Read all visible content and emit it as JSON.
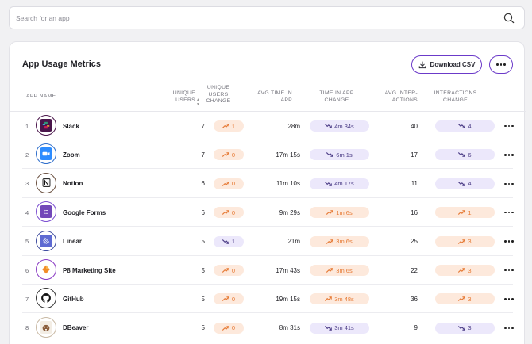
{
  "search": {
    "placeholder": "Search for an app"
  },
  "card": {
    "title": "App Usage Metrics",
    "download_label": "Download CSV"
  },
  "columns": {
    "app_name": "APP NAME",
    "unique_users": [
      "UNIQUE",
      "USERS"
    ],
    "users_change": [
      "UNIQUE",
      "USERS",
      "CHANGE"
    ],
    "avg_time": [
      "AVG TIME IN",
      "APP"
    ],
    "time_change": [
      "TIME IN APP",
      "CHANGE"
    ],
    "avg_inter": [
      "AVG INTER-",
      "ACTIONS"
    ],
    "inter_change": [
      "INTERACTIONS",
      "CHANGE"
    ]
  },
  "colors": {
    "accent": "#6b3ac9",
    "up": "#e67a35",
    "up_bg": "#fde9dc",
    "down": "#4b3c86",
    "down_bg": "#ece8fb"
  },
  "rows": [
    {
      "index": "1",
      "name": "Slack",
      "icon": "slack-icon",
      "users": "7",
      "users_change": {
        "dir": "up",
        "value": "1"
      },
      "avg_time": "28m",
      "time_change": {
        "dir": "down",
        "value": "4m 34s"
      },
      "interactions": "40",
      "inter_change": {
        "dir": "down",
        "value": "4"
      }
    },
    {
      "index": "2",
      "name": "Zoom",
      "icon": "zoom-icon",
      "users": "7",
      "users_change": {
        "dir": "up",
        "value": "0"
      },
      "avg_time": "17m 15s",
      "time_change": {
        "dir": "down",
        "value": "6m 1s"
      },
      "interactions": "17",
      "inter_change": {
        "dir": "down",
        "value": "6"
      }
    },
    {
      "index": "3",
      "name": "Notion",
      "icon": "notion-icon",
      "users": "6",
      "users_change": {
        "dir": "up",
        "value": "0"
      },
      "avg_time": "11m 10s",
      "time_change": {
        "dir": "down",
        "value": "4m 17s"
      },
      "interactions": "11",
      "inter_change": {
        "dir": "down",
        "value": "4"
      }
    },
    {
      "index": "4",
      "name": "Google Forms",
      "icon": "google-forms-icon",
      "users": "6",
      "users_change": {
        "dir": "up",
        "value": "0"
      },
      "avg_time": "9m 29s",
      "time_change": {
        "dir": "up",
        "value": "1m 6s"
      },
      "interactions": "16",
      "inter_change": {
        "dir": "up",
        "value": "1"
      }
    },
    {
      "index": "5",
      "name": "Linear",
      "icon": "linear-icon",
      "users": "5",
      "users_change": {
        "dir": "down",
        "value": "1"
      },
      "avg_time": "21m",
      "time_change": {
        "dir": "up",
        "value": "3m 6s"
      },
      "interactions": "25",
      "inter_change": {
        "dir": "up",
        "value": "3"
      }
    },
    {
      "index": "6",
      "name": "P8 Marketing Site",
      "icon": "p8-site-icon",
      "users": "5",
      "users_change": {
        "dir": "up",
        "value": "0"
      },
      "avg_time": "17m 43s",
      "time_change": {
        "dir": "up",
        "value": "3m 6s"
      },
      "interactions": "22",
      "inter_change": {
        "dir": "up",
        "value": "3"
      }
    },
    {
      "index": "7",
      "name": "GitHub",
      "icon": "github-icon",
      "users": "5",
      "users_change": {
        "dir": "up",
        "value": "0"
      },
      "avg_time": "19m 15s",
      "time_change": {
        "dir": "up",
        "value": "3m 48s"
      },
      "interactions": "36",
      "inter_change": {
        "dir": "up",
        "value": "3"
      }
    },
    {
      "index": "8",
      "name": "DBeaver",
      "icon": "dbeaver-icon",
      "users": "5",
      "users_change": {
        "dir": "up",
        "value": "0"
      },
      "avg_time": "8m 31s",
      "time_change": {
        "dir": "down",
        "value": "3m 41s"
      },
      "interactions": "9",
      "inter_change": {
        "dir": "down",
        "value": "3"
      }
    }
  ]
}
